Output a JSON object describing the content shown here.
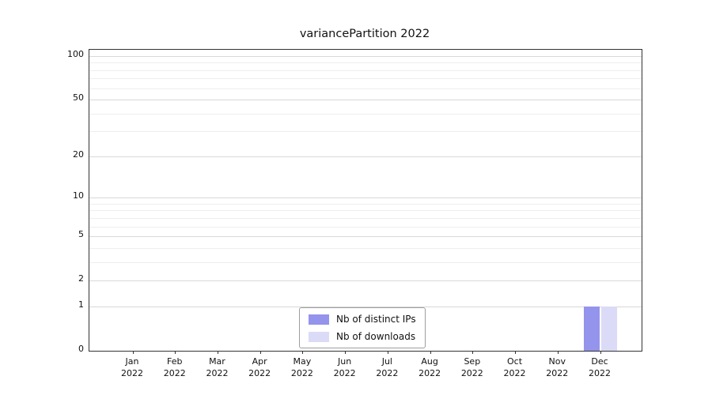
{
  "chart_data": {
    "type": "bar",
    "title": "variancePartition 2022",
    "categories": [
      "Jan 2022",
      "Feb 2022",
      "Mar 2022",
      "Apr 2022",
      "May 2022",
      "Jun 2022",
      "Jul 2022",
      "Aug 2022",
      "Sep 2022",
      "Oct 2022",
      "Nov 2022",
      "Dec 2022"
    ],
    "series": [
      {
        "name": "Nb of distinct IPs",
        "color": "#9494ec",
        "values": [
          0,
          0,
          0,
          0,
          0,
          0,
          0,
          0,
          0,
          0,
          0,
          1
        ]
      },
      {
        "name": "Nb of downloads",
        "color": "#dbdbf7",
        "values": [
          0,
          0,
          0,
          0,
          0,
          0,
          0,
          0,
          0,
          0,
          0,
          1
        ]
      }
    ],
    "yscale": "log1p",
    "ylim": [
      0,
      112
    ],
    "yticks": [
      0,
      1,
      2,
      5,
      10,
      20,
      50,
      100
    ],
    "minor_gridlines": [
      3,
      4,
      6,
      7,
      8,
      9,
      30,
      40,
      60,
      70,
      80,
      90
    ],
    "grid": true,
    "legend_position": "bottom-center"
  }
}
